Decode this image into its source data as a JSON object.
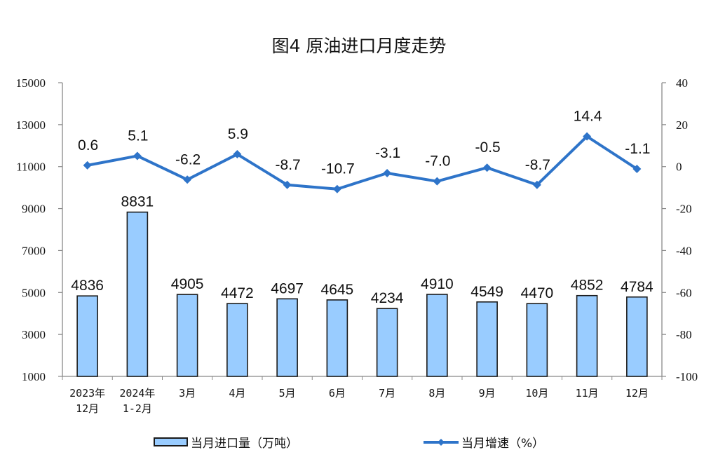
{
  "title": "图4  原油进口月度走势",
  "colors": {
    "bar_fill": "#99CCFF",
    "bar_stroke": "#1a1a1a",
    "line": "#2E74C9",
    "axis": "#888888"
  },
  "legend": {
    "bar_label": "当月进口量（万吨）",
    "line_label": "当月增速（%）"
  },
  "chart_data": {
    "type": "bar+line",
    "title": "图4  原油进口月度走势",
    "categories": [
      "2023年\n12月",
      "2024年\n1-2月",
      "3月",
      "4月",
      "5月",
      "6月",
      "7月",
      "8月",
      "9月",
      "10月",
      "11月",
      "12月"
    ],
    "category_lines": [
      [
        "2023年",
        "12月"
      ],
      [
        "2024年",
        "1-2月"
      ],
      [
        "3月"
      ],
      [
        "4月"
      ],
      [
        "5月"
      ],
      [
        "6月"
      ],
      [
        "7月"
      ],
      [
        "8月"
      ],
      [
        "9月"
      ],
      [
        "10月"
      ],
      [
        "11月"
      ],
      [
        "12月"
      ]
    ],
    "series": [
      {
        "name": "当月进口量（万吨）",
        "type": "bar",
        "axis": "left",
        "values": [
          4836,
          8831,
          4905,
          4472,
          4697,
          4645,
          4234,
          4910,
          4549,
          4470,
          4852,
          4784
        ]
      },
      {
        "name": "当月增速（%）",
        "type": "line",
        "axis": "right",
        "values": [
          0.6,
          5.1,
          -6.2,
          5.9,
          -8.7,
          -10.7,
          -3.1,
          -7.0,
          -0.5,
          -8.7,
          14.4,
          -1.1
        ]
      }
    ],
    "y_left": {
      "min": 1000,
      "max": 15000,
      "ticks": [
        15000,
        13000,
        11000,
        9000,
        7000,
        5000,
        3000,
        1000
      ]
    },
    "y_right": {
      "min": -100,
      "max": 40,
      "ticks": [
        40,
        20,
        0,
        -20,
        -40,
        -60,
        -80,
        -100
      ]
    },
    "grid": false,
    "legend_position": "bottom"
  }
}
